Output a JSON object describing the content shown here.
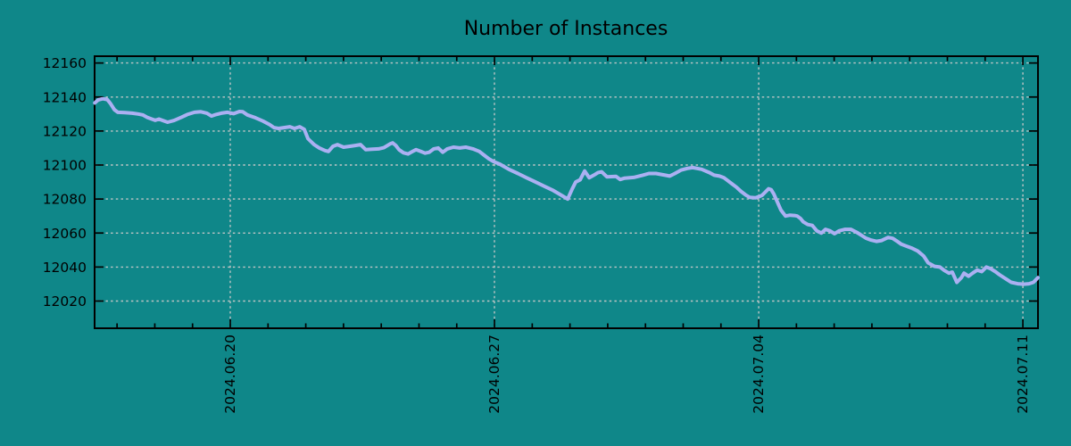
{
  "chart_data": {
    "type": "line",
    "title": "Number of Instances",
    "x_axis": {
      "unit": "days since 2024-06-16",
      "xlim": [
        0.405,
        25.4
      ],
      "major_ticks": [
        {
          "d": 4,
          "label": "2024.06.20"
        },
        {
          "d": 11,
          "label": "2024.06.27"
        },
        {
          "d": 18,
          "label": "2024.07.04"
        },
        {
          "d": 25,
          "label": "2024.07.11"
        }
      ],
      "minor_tick_every_days": 1
    },
    "y_axis": {
      "ylim": [
        12004,
        12164
      ],
      "ticks": [
        12020,
        12040,
        12060,
        12080,
        12100,
        12120,
        12140,
        12160
      ]
    },
    "grid": "dashed-at-major-ticks",
    "legend_position": "none",
    "series": [
      {
        "name": "instances",
        "color": "#abb0f2",
        "points": [
          [
            0.41,
            12136.5
          ],
          [
            0.5,
            12138.3
          ],
          [
            0.62,
            12139
          ],
          [
            0.74,
            12138.5
          ],
          [
            0.83,
            12136
          ],
          [
            0.93,
            12132.5
          ],
          [
            1.02,
            12131
          ],
          [
            1.21,
            12130.8
          ],
          [
            1.4,
            12130.5
          ],
          [
            1.56,
            12130
          ],
          [
            1.68,
            12129.5
          ],
          [
            1.8,
            12128
          ],
          [
            1.92,
            12127
          ],
          [
            2.01,
            12126.3
          ],
          [
            2.11,
            12127
          ],
          [
            2.23,
            12126
          ],
          [
            2.34,
            12125.2
          ],
          [
            2.51,
            12126.2
          ],
          [
            2.7,
            12128
          ],
          [
            2.86,
            12129.7
          ],
          [
            3.05,
            12131
          ],
          [
            3.22,
            12131.3
          ],
          [
            3.38,
            12130.5
          ],
          [
            3.5,
            12128.8
          ],
          [
            3.62,
            12129.7
          ],
          [
            3.76,
            12130.5
          ],
          [
            3.93,
            12131
          ],
          [
            4.09,
            12130.2
          ],
          [
            4.24,
            12131.5
          ],
          [
            4.33,
            12131.3
          ],
          [
            4.45,
            12129.5
          ],
          [
            4.64,
            12128
          ],
          [
            4.87,
            12125.8
          ],
          [
            5.04,
            12123.8
          ],
          [
            5.16,
            12122
          ],
          [
            5.28,
            12121.5
          ],
          [
            5.42,
            12122
          ],
          [
            5.58,
            12122.5
          ],
          [
            5.7,
            12121.5
          ],
          [
            5.84,
            12122.5
          ],
          [
            5.96,
            12121
          ],
          [
            6.06,
            12115.5
          ],
          [
            6.22,
            12112
          ],
          [
            6.36,
            12110
          ],
          [
            6.51,
            12108.5
          ],
          [
            6.6,
            12108
          ],
          [
            6.72,
            12111
          ],
          [
            6.84,
            12112
          ],
          [
            7.0,
            12110.5
          ],
          [
            7.17,
            12111
          ],
          [
            7.31,
            12111.5
          ],
          [
            7.45,
            12112
          ],
          [
            7.59,
            12109
          ],
          [
            7.76,
            12109.3
          ],
          [
            7.93,
            12109.5
          ],
          [
            8.07,
            12110.2
          ],
          [
            8.23,
            12112.4
          ],
          [
            8.3,
            12113
          ],
          [
            8.38,
            12111.6
          ],
          [
            8.47,
            12109
          ],
          [
            8.59,
            12107.2
          ],
          [
            8.71,
            12106.5
          ],
          [
            8.83,
            12108
          ],
          [
            8.92,
            12109
          ],
          [
            9.04,
            12108.1
          ],
          [
            9.16,
            12107
          ],
          [
            9.27,
            12107.5
          ],
          [
            9.39,
            12109.5
          ],
          [
            9.51,
            12110
          ],
          [
            9.63,
            12107.5
          ],
          [
            9.75,
            12109.5
          ],
          [
            9.91,
            12110.5
          ],
          [
            10.08,
            12110
          ],
          [
            10.24,
            12110.5
          ],
          [
            10.43,
            12109.5
          ],
          [
            10.6,
            12108
          ],
          [
            10.74,
            12105.5
          ],
          [
            10.86,
            12103.5
          ],
          [
            10.98,
            12102
          ],
          [
            11.14,
            12100.5
          ],
          [
            11.38,
            12097.5
          ],
          [
            11.62,
            12095
          ],
          [
            11.85,
            12092.5
          ],
          [
            12.09,
            12090
          ],
          [
            12.32,
            12087.5
          ],
          [
            12.56,
            12085
          ],
          [
            12.75,
            12082.5
          ],
          [
            12.94,
            12080
          ],
          [
            13.06,
            12086
          ],
          [
            13.15,
            12090
          ],
          [
            13.27,
            12091.3
          ],
          [
            13.39,
            12096.5
          ],
          [
            13.51,
            12092.5
          ],
          [
            13.63,
            12094
          ],
          [
            13.74,
            12095.5
          ],
          [
            13.84,
            12096
          ],
          [
            13.98,
            12093
          ],
          [
            14.22,
            12093.3
          ],
          [
            14.33,
            12091.5
          ],
          [
            14.45,
            12092.3
          ],
          [
            14.69,
            12092.7
          ],
          [
            14.93,
            12094
          ],
          [
            15.09,
            12095
          ],
          [
            15.28,
            12095
          ],
          [
            15.52,
            12094
          ],
          [
            15.64,
            12093.5
          ],
          [
            15.78,
            12095
          ],
          [
            15.94,
            12097
          ],
          [
            16.11,
            12098
          ],
          [
            16.25,
            12098.5
          ],
          [
            16.37,
            12098
          ],
          [
            16.49,
            12097.5
          ],
          [
            16.7,
            12095.5
          ],
          [
            16.82,
            12094
          ],
          [
            16.96,
            12093.5
          ],
          [
            17.08,
            12092.5
          ],
          [
            17.17,
            12091
          ],
          [
            17.29,
            12089
          ],
          [
            17.41,
            12087
          ],
          [
            17.53,
            12084.5
          ],
          [
            17.65,
            12082.5
          ],
          [
            17.76,
            12081
          ],
          [
            17.91,
            12080.7
          ],
          [
            18.02,
            12081.5
          ],
          [
            18.09,
            12082.2
          ],
          [
            18.17,
            12084
          ],
          [
            18.26,
            12086
          ],
          [
            18.33,
            12085.5
          ],
          [
            18.4,
            12083
          ],
          [
            18.5,
            12078
          ],
          [
            18.59,
            12073.5
          ],
          [
            18.71,
            12070
          ],
          [
            18.83,
            12070.5
          ],
          [
            18.95,
            12070.3
          ],
          [
            19.02,
            12070
          ],
          [
            19.11,
            12068.5
          ],
          [
            19.18,
            12066.6
          ],
          [
            19.3,
            12065
          ],
          [
            19.42,
            12064.5
          ],
          [
            19.54,
            12061.3
          ],
          [
            19.66,
            12060
          ],
          [
            19.77,
            12062.2
          ],
          [
            19.89,
            12061.3
          ],
          [
            20.01,
            12059.6
          ],
          [
            20.13,
            12061.3
          ],
          [
            20.29,
            12062.2
          ],
          [
            20.44,
            12062.2
          ],
          [
            20.6,
            12060.4
          ],
          [
            20.72,
            12058.7
          ],
          [
            20.84,
            12057
          ],
          [
            20.96,
            12056
          ],
          [
            21.12,
            12055.1
          ],
          [
            21.26,
            12055.6
          ],
          [
            21.43,
            12057.4
          ],
          [
            21.55,
            12056.9
          ],
          [
            21.67,
            12055.1
          ],
          [
            21.78,
            12053.4
          ],
          [
            21.95,
            12052
          ],
          [
            22.07,
            12051
          ],
          [
            22.21,
            12049.5
          ],
          [
            22.37,
            12046.5
          ],
          [
            22.49,
            12042.5
          ],
          [
            22.66,
            12040.4
          ],
          [
            22.8,
            12040
          ],
          [
            22.92,
            12038
          ],
          [
            23.04,
            12036.4
          ],
          [
            23.13,
            12037
          ],
          [
            23.25,
            12031
          ],
          [
            23.37,
            12033.8
          ],
          [
            23.44,
            12036.4
          ],
          [
            23.56,
            12034.6
          ],
          [
            23.67,
            12036.4
          ],
          [
            23.79,
            12038.2
          ],
          [
            23.91,
            12037.3
          ],
          [
            24.03,
            12040
          ],
          [
            24.15,
            12039
          ],
          [
            24.27,
            12037.3
          ],
          [
            24.38,
            12035.5
          ],
          [
            24.55,
            12033
          ],
          [
            24.69,
            12031
          ],
          [
            24.86,
            12030.2
          ],
          [
            25.02,
            12029.9
          ],
          [
            25.16,
            12030.2
          ],
          [
            25.28,
            12031
          ],
          [
            25.4,
            12033.8
          ]
        ]
      }
    ]
  },
  "colors": {
    "background": "#0f8789",
    "line": "#abb0f2",
    "grid": "#c9c9c9",
    "axis": "#000000",
    "text": "#000000"
  }
}
